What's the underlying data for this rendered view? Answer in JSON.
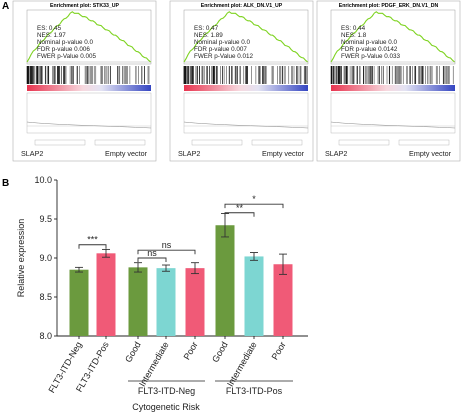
{
  "panels": {
    "a": "A",
    "b": "B"
  },
  "gsea": [
    {
      "title": "Enrichment plot: STK33_UP",
      "es": "ES: 0.45",
      "nes": "NES: 1.97",
      "nominal_p": "Nominal p-value 0.0",
      "fdr": "FDR p-value 0.006",
      "fwer": "FWER p-Value 0.005",
      "left_label": "SLAP2",
      "right_label": "Empty vector"
    },
    {
      "title": "Enrichment plot: ALK_DN.V1_UP",
      "es": "ES: 0.47",
      "nes": "NES: 1.89",
      "nominal_p": "Nominal p-value 0.0",
      "fdr": "FDR p-value 0.007",
      "fwer": "FWER p-Value 0.012",
      "left_label": "SLAP2",
      "right_label": "Empty vector"
    },
    {
      "title": "Enrichment plot: PDGF_ERK_DN.V1_DN",
      "es": "ES: 0.44",
      "nes": "NES: 1.8",
      "nominal_p": "Nominal p-value 0.0",
      "fdr": "FDR p-value 0.0142",
      "fwer": "FWER p-Value 0.033",
      "left_label": "SLAP2",
      "right_label": "Empty vector"
    }
  ],
  "chart_data": {
    "type": "bar",
    "ylabel": "Relative expression",
    "xlabel": "Cytogenetic Risk",
    "ylim": [
      8.0,
      10.0
    ],
    "yticks": [
      "8.0",
      "8.5",
      "9.0",
      "9.5",
      "10.0"
    ],
    "yticks_values": [
      8.0,
      8.5,
      9.0,
      9.5,
      10.0
    ],
    "categories": [
      "FLT3-ITD-Neg",
      "FLT3-ITD-Pos",
      "Good",
      "Intermediate",
      "Poor",
      "Good",
      "Intermediate",
      "Poor"
    ],
    "values": [
      8.85,
      9.06,
      8.88,
      8.87,
      8.87,
      9.42,
      9.02,
      8.92
    ],
    "errors": [
      0.03,
      0.05,
      0.06,
      0.04,
      0.07,
      0.15,
      0.05,
      0.13
    ],
    "colors": [
      "#6b9a3e",
      "#f05a77",
      "#6b9a3e",
      "#7dd6d2",
      "#f05a77",
      "#6b9a3e",
      "#7dd6d2",
      "#f05a77"
    ],
    "groups": [
      {
        "label": "FLT3-ITD-Neg",
        "bars": [
          2,
          3,
          4
        ]
      },
      {
        "label": "FLT3-ITD-Pos",
        "bars": [
          5,
          6,
          7
        ]
      }
    ],
    "annotations": [
      {
        "text": "***",
        "from": 0,
        "to": 1,
        "level": 9.17
      },
      {
        "text": "ns",
        "from": 2,
        "to": 3,
        "level": 9.0
      },
      {
        "text": "ns",
        "from": 2,
        "to": 4,
        "level": 9.1
      },
      {
        "text": "**",
        "from": 5,
        "to": 6,
        "level": 9.58
      },
      {
        "text": "*",
        "from": 5,
        "to": 7,
        "level": 9.69
      }
    ]
  }
}
